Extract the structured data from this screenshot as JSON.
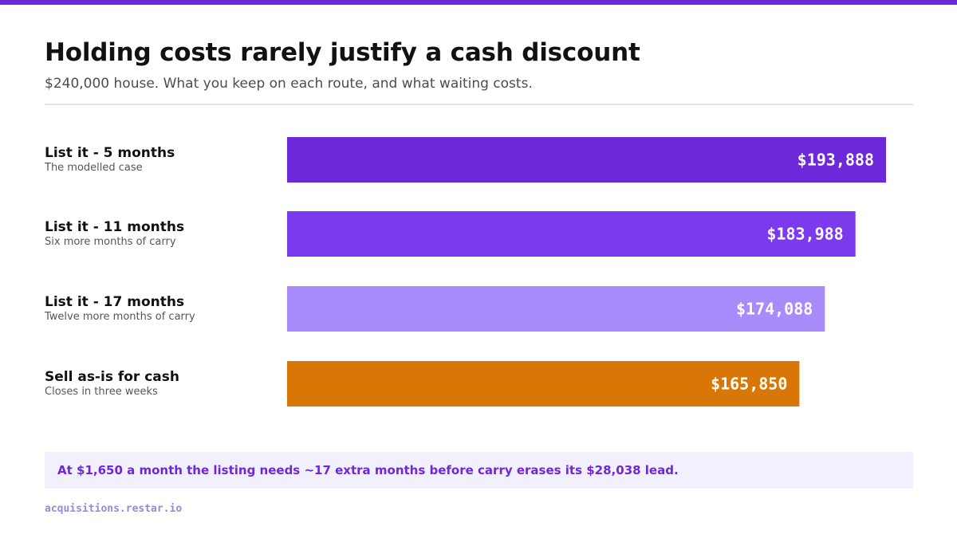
{
  "colors": {
    "accent": "#6d28d9",
    "bar_colors": [
      "#6d28d9",
      "#7c3aed",
      "#a78bfa",
      "#d97706"
    ]
  },
  "chart_data": {
    "type": "bar",
    "orientation": "horizontal",
    "title": "Holding costs rarely justify a cash discount",
    "subtitle": "$240,000 house. What you keep on each route, and what waiting costs.",
    "categories": [
      "List it - 5 months",
      "List it - 11 months",
      "List it - 17 months",
      "Sell as-is for cash"
    ],
    "notes": [
      "The modelled case",
      "Six more months of carry",
      "Twelve more months of carry",
      "Closes in three weeks"
    ],
    "values": [
      193888,
      183988,
      174088,
      165850
    ],
    "value_labels": [
      "$193,888",
      "$183,988",
      "$174,088",
      "$165,850"
    ],
    "grid": false
  },
  "callout": "At $1,650 a month the listing needs ~17 extra months before carry erases its $28,038 lead.",
  "footer": "acquisitions.restar.io"
}
